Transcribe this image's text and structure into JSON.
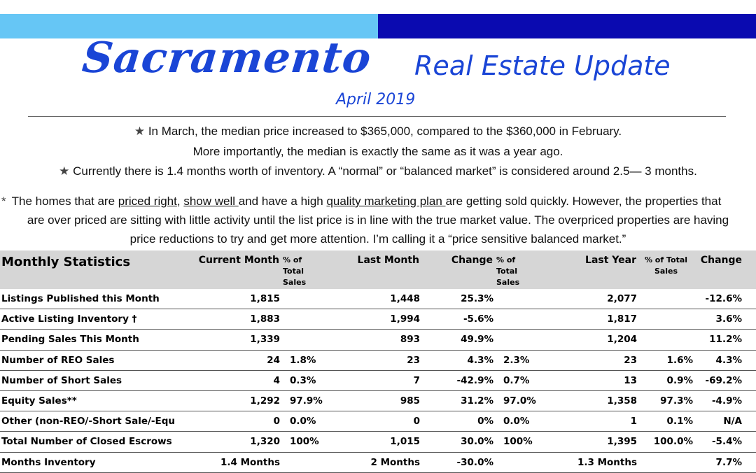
{
  "header": {
    "colors": {
      "bar_left": "#66c6f5",
      "bar_right": "#0a0ab0",
      "title": "#1a45d6"
    },
    "title_city": "Sacramento",
    "title_rest": "Real Estate Update",
    "date": "April 2019"
  },
  "bullets": {
    "b1": "In March, the median price increased to $365,000, compared to the $360,000 in February.",
    "b1b": "More importantly,  the median is exactly the same as it was a year ago.",
    "b2": "Currently there is 1.4 months worth of inventory. A “normal” or “balanced market” is considered around 2.5— 3 months.",
    "b3": {
      "t1": "The homes that are ",
      "u1": "priced right",
      "t2": ", ",
      "u2": "show well ",
      "t3": "and have a high ",
      "u3": "quality marketing plan ",
      "t4": "are getting sold quickly.  However, the properties that",
      "line2": "are over priced are sitting with little activity until the list price is in line with the true market value.  The overpriced properties are having",
      "line3": "price reductions to try and get more attention. I’m calling it a “price sensitive balanced market.”"
    }
  },
  "table": {
    "headers": {
      "title": "Monthly Statistics",
      "current": "Current Month",
      "pct1_a": "% of",
      "pct1_b": "Total",
      "pct1_c": "Sales",
      "last_month": "Last Month",
      "change1": "Change",
      "pct2_a": "% of",
      "pct2_b": "Total",
      "pct2_c": "Sales",
      "last_year": "Last Year",
      "pct3_a": "% of  Total",
      "pct3_b": "Sales",
      "change2": "Change"
    },
    "rows": [
      {
        "label": "Listings Published this Month",
        "cur": "1,815",
        "cur_pct": "",
        "last": "1,448",
        "chg": "25.3%",
        "last_pct": "",
        "ly": "2,077",
        "ly_pct": "",
        "chg2": "-12.6%"
      },
      {
        "label": "Active Listing Inventory †",
        "cur": "1,883",
        "cur_pct": "",
        "last": "1,994",
        "chg": "-5.6%",
        "last_pct": "",
        "ly": "1,817",
        "ly_pct": "",
        "chg2": "3.6%"
      },
      {
        "label": "Pending Sales This Month",
        "cur": "1,339",
        "cur_pct": "",
        "last": "893",
        "chg": "49.9%",
        "last_pct": "",
        "ly": "1,204",
        "ly_pct": "",
        "chg2": "11.2%"
      },
      {
        "label": "Number of REO Sales",
        "cur": "24",
        "cur_pct": "1.8%",
        "last": "23",
        "chg": "4.3%",
        "last_pct": "2.3%",
        "ly": "23",
        "ly_pct": "1.6%",
        "chg2": "4.3%"
      },
      {
        "label": "Number of Short Sales",
        "cur": "4",
        "cur_pct": "0.3%",
        "last": "7",
        "chg": "-42.9%",
        "last_pct": "0.7%",
        "ly": "13",
        "ly_pct": "0.9%",
        "chg2": "-69.2%"
      },
      {
        "label": "Equity Sales**",
        "cur": "1,292",
        "cur_pct": "97.9%",
        "last": "985",
        "chg": "31.2%",
        "last_pct": "97.0%",
        "ly": "1,358",
        "ly_pct": "97.3%",
        "chg2": "-4.9%"
      },
      {
        "label": "Other (non-REO/-Short Sale/-Equ",
        "cur": "0",
        "cur_pct": "0.0%",
        "last": "0",
        "chg": "0%",
        "last_pct": "0.0%",
        "ly": "1",
        "ly_pct": "0.1%",
        "chg2": "N/A"
      },
      {
        "label": "Total Number of Closed Escrows",
        "cur": "1,320",
        "cur_pct": "100%",
        "last": "1,015",
        "chg": "30.0%",
        "last_pct": "100%",
        "ly": "1,395",
        "ly_pct": "100.0%",
        "chg2": "-5.4%"
      },
      {
        "label": "Months Inventory",
        "cur": "1.4 Months",
        "cur_pct": "",
        "last": "2 Months",
        "chg": "-30.0%",
        "last_pct": "",
        "ly": "1.3 Months",
        "ly_pct": "",
        "chg2": "7.7%"
      }
    ]
  }
}
